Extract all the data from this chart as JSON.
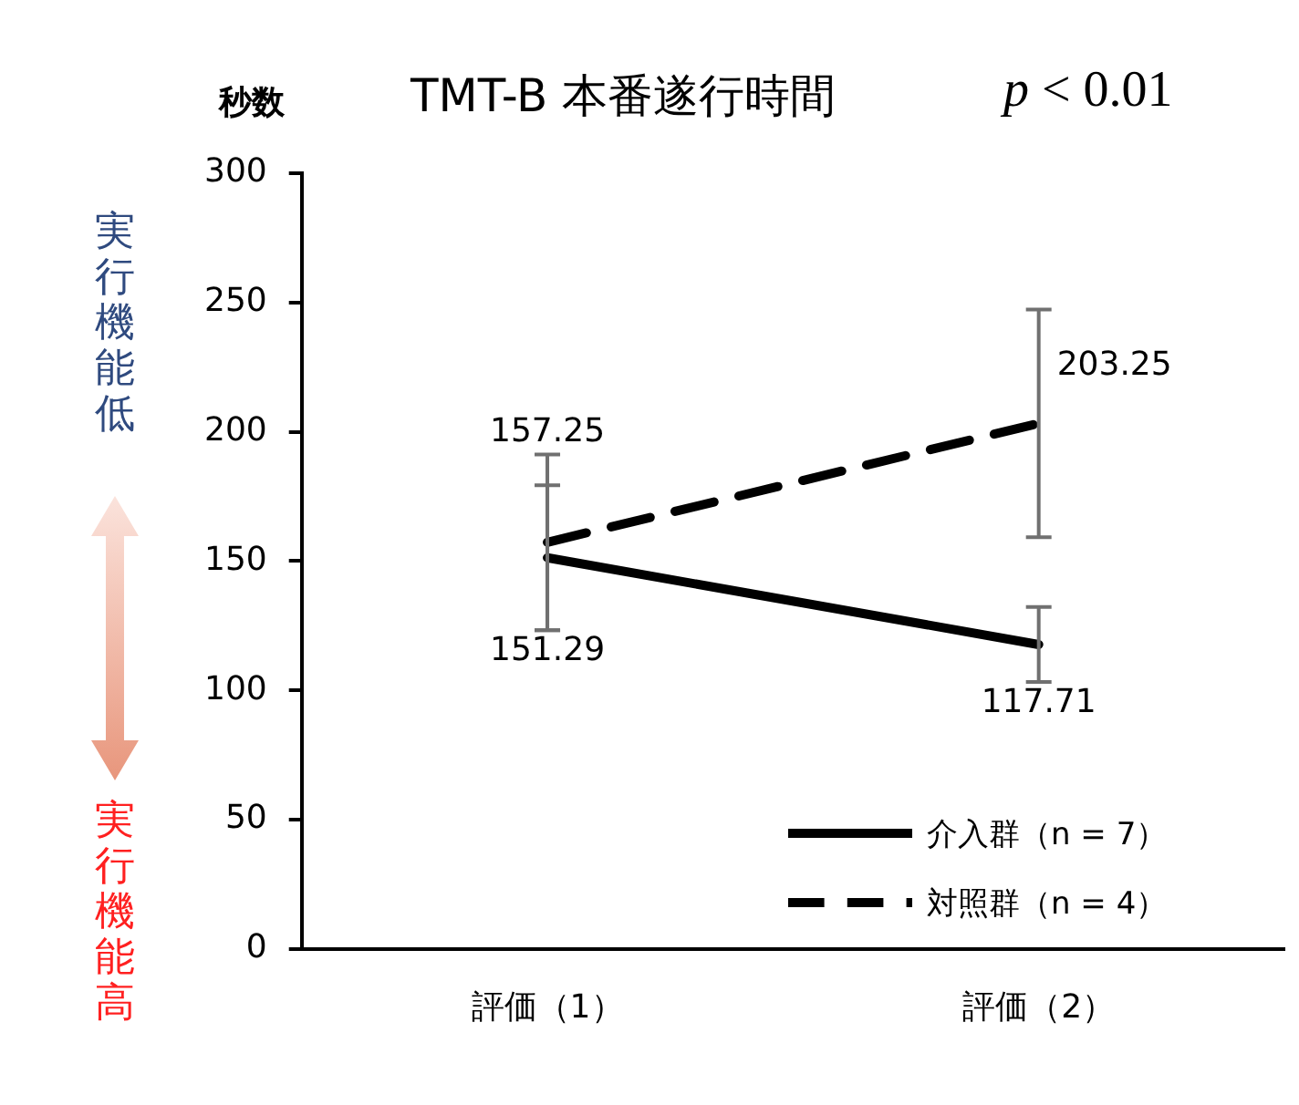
{
  "chart_data": {
    "type": "line",
    "title": "TMT-B 本番遂行時間",
    "ylabel": "秒数",
    "annotations": [
      "p < 0.01",
      "実行機能低",
      "実行機能高"
    ],
    "categories": [
      "評価（1）",
      "評価（2）"
    ],
    "series": [
      {
        "name": "介入群（n = 7）",
        "color": "#000000",
        "values": [
          151.29,
          117.71
        ],
        "errors": [
          28,
          14.5
        ],
        "line_style": "solid"
      },
      {
        "name": "対照群（n = 4）",
        "color": "#000000",
        "values": [
          157.25,
          203.25
        ],
        "errors": [
          34,
          44
        ],
        "line_style": "dashed"
      }
    ],
    "ylim": [
      0,
      300
    ],
    "yticks": [
      0,
      50,
      100,
      150,
      200,
      250,
      300
    ],
    "grid": false,
    "legend": "bottom right",
    "marker": "none",
    "data_labels": true
  }
}
